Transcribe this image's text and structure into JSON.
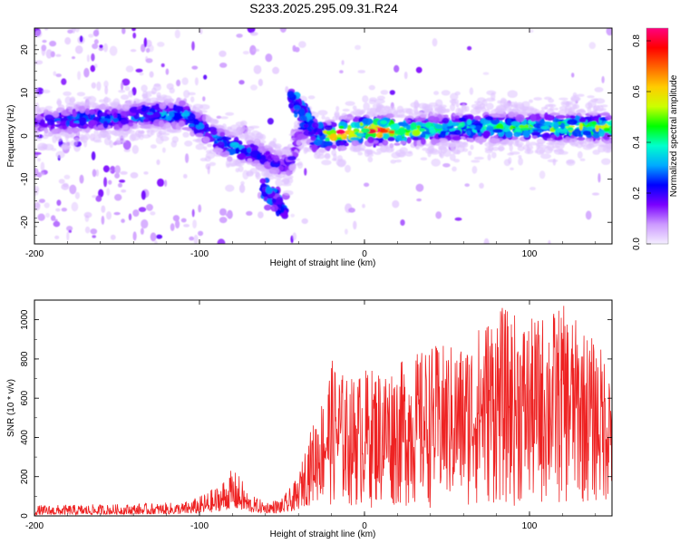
{
  "title": "S233.2025.295.09.31.R24",
  "chart_data": [
    {
      "id": "spectrogram",
      "type": "heatmap",
      "title": "S233.2025.295.09.31.R24",
      "xlabel": "Height of straight line (km)",
      "ylabel": "Frequency (Hz)",
      "xlim": [
        -200,
        150
      ],
      "ylim": [
        -25,
        25
      ],
      "xticks": [
        -200,
        -100,
        0,
        100
      ],
      "yticks": [
        -20,
        -10,
        0,
        10,
        20
      ],
      "colorbar": {
        "label": "Normalized spectral amplitude",
        "range": [
          0.0,
          0.85
        ],
        "ticks": [
          0.0,
          0.2,
          0.4,
          0.6,
          0.8
        ],
        "colors": [
          "#f4eeff",
          "#cc99ff",
          "#7a00ff",
          "#0000ff",
          "#00aaff",
          "#00ffcc",
          "#00ff00",
          "#ccff00",
          "#ffcc00",
          "#ff6600",
          "#ff0000",
          "#ff0080"
        ]
      },
      "ridge": {
        "x": [
          -200,
          -185,
          -170,
          -150,
          -130,
          -110,
          -95,
          -85,
          -75,
          -65,
          -55,
          -45,
          -40,
          -35,
          -30,
          -25,
          -20,
          -10,
          0,
          10,
          25,
          40,
          60,
          80,
          100,
          120,
          150
        ],
        "freq": [
          3,
          3.5,
          4,
          4,
          5,
          5,
          1,
          -2,
          -3,
          -4,
          -6,
          -7,
          0,
          3,
          -1,
          0,
          0,
          1,
          1.5,
          1.5,
          1,
          1.5,
          2,
          2,
          2,
          2,
          2
        ],
        "peak_amplitude": [
          0.2,
          0.25,
          0.3,
          0.25,
          0.3,
          0.35,
          0.3,
          0.35,
          0.3,
          0.25,
          0.2,
          0.2,
          0.15,
          0.3,
          0.3,
          0.5,
          0.75,
          0.8,
          0.7,
          0.8,
          0.55,
          0.45,
          0.4,
          0.45,
          0.45,
          0.5,
          0.55
        ]
      },
      "branches": [
        {
          "x": [
            -45,
            -25
          ],
          "freq": [
            9,
            0
          ]
        },
        {
          "x": [
            -62,
            -48
          ],
          "freq": [
            -12,
            -17
          ]
        }
      ]
    },
    {
      "id": "snr",
      "type": "line",
      "xlabel": "Height of straight line (km)",
      "ylabel": "SNR (10 * v/v)",
      "xlim": [
        -200,
        150
      ],
      "ylim": [
        0,
        1100
      ],
      "xticks": [
        -200,
        -100,
        0,
        100
      ],
      "yticks": [
        0,
        200,
        400,
        600,
        800,
        1000
      ],
      "color": "#ee2222",
      "envelope": {
        "x": [
          -200,
          -150,
          -110,
          -100,
          -90,
          -80,
          -75,
          -70,
          -60,
          -50,
          -40,
          -35,
          -30,
          -25,
          -20,
          -10,
          0,
          20,
          40,
          60,
          80,
          100,
          120,
          150
        ],
        "upper": [
          55,
          60,
          70,
          100,
          150,
          240,
          200,
          110,
          75,
          90,
          200,
          380,
          500,
          620,
          800,
          700,
          750,
          780,
          870,
          880,
          1080,
          1000,
          1080,
          800
        ],
        "lower": [
          5,
          8,
          10,
          12,
          20,
          40,
          30,
          20,
          15,
          15,
          30,
          50,
          60,
          60,
          50,
          40,
          40,
          40,
          40,
          40,
          50,
          40,
          50,
          60
        ]
      }
    }
  ]
}
